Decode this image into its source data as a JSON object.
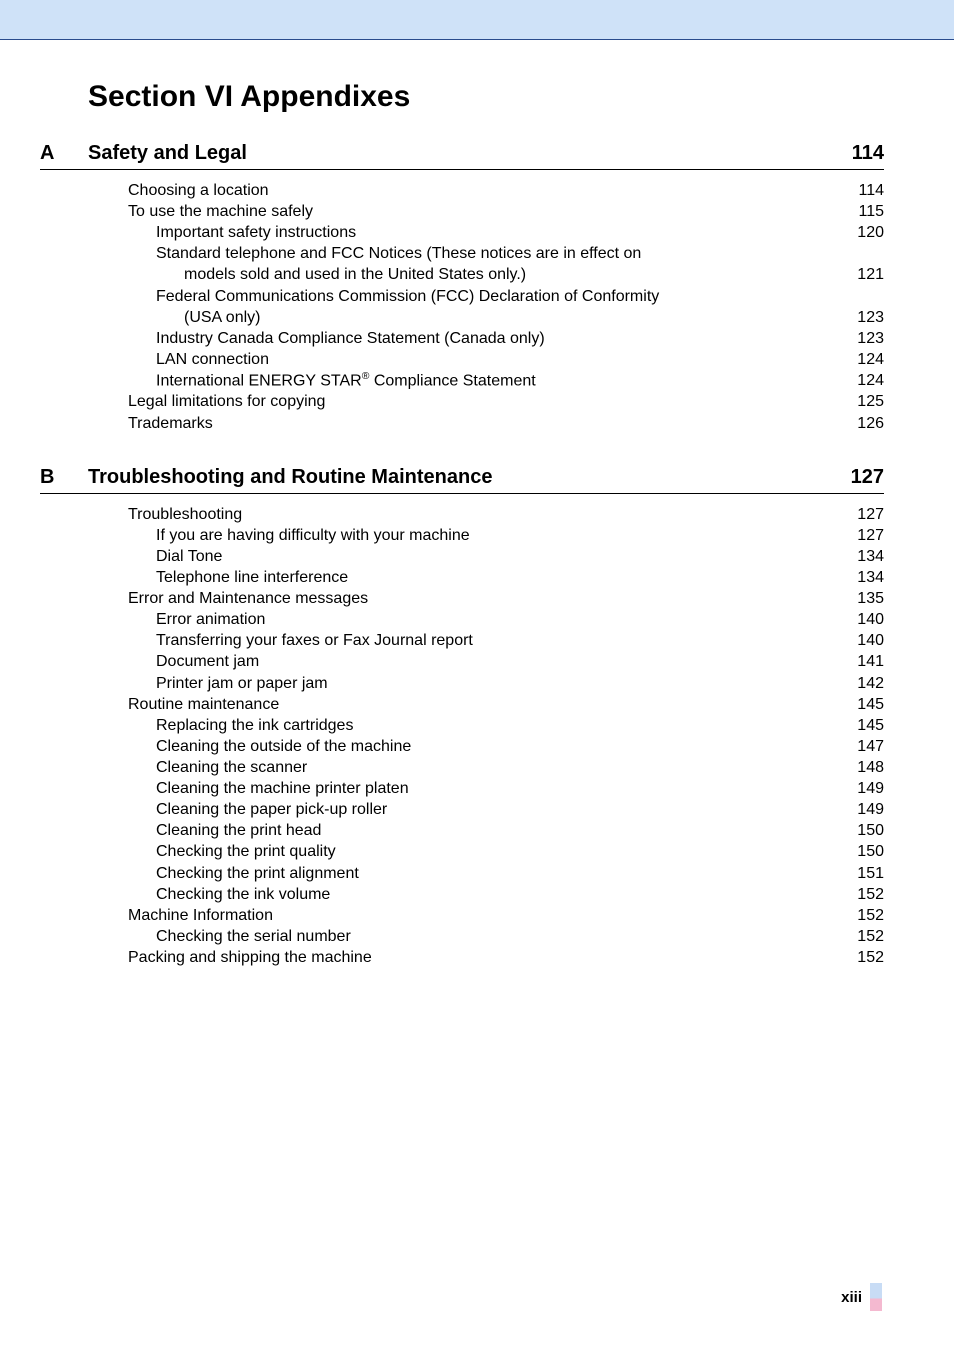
{
  "colors": {
    "header_background": "#cfe2f8",
    "header_border": "#2a4b8d",
    "text": "#000000",
    "page_background": "#ffffff",
    "footer_mark_top": "#c8dcf5",
    "footer_mark_bottom": "#f4b9d0"
  },
  "typography": {
    "section_title_size_pt": 22,
    "chapter_title_size_pt": 15,
    "toc_entry_size_pt": 12,
    "footer_size_pt": 11,
    "font_family": "Arial"
  },
  "section_title": "Section VI Appendixes",
  "chapters": [
    {
      "letter": "A",
      "title": "Safety and Legal",
      "page": "114",
      "entries": [
        {
          "indent": 0,
          "label": "Choosing a location",
          "page": "114"
        },
        {
          "indent": 0,
          "label": "To use the machine safely",
          "page": "115"
        },
        {
          "indent": 1,
          "label": "Important safety instructions",
          "page": "120"
        },
        {
          "indent": 1,
          "wrap": true,
          "line1": "Standard telephone and FCC Notices (These notices are in effect on",
          "line2": "models sold and used in the United States only.)",
          "page": "121"
        },
        {
          "indent": 1,
          "wrap": true,
          "line1": "Federal Communications Commission (FCC) Declaration of Conformity",
          "line2": "(USA only)",
          "page": "123"
        },
        {
          "indent": 1,
          "label": "Industry Canada Compliance Statement (Canada only)",
          "page": "123"
        },
        {
          "indent": 1,
          "label": "LAN connection",
          "page": "124"
        },
        {
          "indent": 1,
          "label_html": "International ENERGY STAR<sup>®</sup> Compliance Statement",
          "page": "124"
        },
        {
          "indent": 0,
          "label": "Legal limitations for copying",
          "page": "125"
        },
        {
          "indent": 0,
          "label": "Trademarks",
          "page": "126"
        }
      ]
    },
    {
      "letter": "B",
      "title": "Troubleshooting and Routine Maintenance",
      "page": "127",
      "entries": [
        {
          "indent": 0,
          "label": "Troubleshooting",
          "page": "127"
        },
        {
          "indent": 1,
          "label": "If you are having difficulty with your machine",
          "page": "127"
        },
        {
          "indent": 1,
          "label": "Dial Tone",
          "page": "134"
        },
        {
          "indent": 1,
          "label": "Telephone line interference",
          "page": "134"
        },
        {
          "indent": 0,
          "label": "Error and Maintenance messages",
          "page": "135"
        },
        {
          "indent": 1,
          "label": "Error animation",
          "page": "140"
        },
        {
          "indent": 1,
          "label": "Transferring your faxes or Fax Journal report",
          "page": "140"
        },
        {
          "indent": 1,
          "label": "Document jam",
          "page": "141"
        },
        {
          "indent": 1,
          "label": "Printer jam or paper jam",
          "page": "142"
        },
        {
          "indent": 0,
          "label": "Routine maintenance",
          "page": "145"
        },
        {
          "indent": 1,
          "label": "Replacing the ink cartridges",
          "page": "145"
        },
        {
          "indent": 1,
          "label": "Cleaning the outside of the machine",
          "page": "147"
        },
        {
          "indent": 1,
          "label": "Cleaning the scanner",
          "page": "148"
        },
        {
          "indent": 1,
          "label": "Cleaning the machine printer platen",
          "page": "149"
        },
        {
          "indent": 1,
          "label": "Cleaning the paper pick-up roller",
          "page": "149"
        },
        {
          "indent": 1,
          "label": "Cleaning the print head",
          "page": "150"
        },
        {
          "indent": 1,
          "label": "Checking the print quality",
          "page": "150"
        },
        {
          "indent": 1,
          "label": "Checking the print alignment",
          "page": "151"
        },
        {
          "indent": 1,
          "label": "Checking the ink volume",
          "page": "152"
        },
        {
          "indent": 0,
          "label": "Machine Information",
          "page": "152"
        },
        {
          "indent": 1,
          "label": "Checking the serial number",
          "page": "152"
        },
        {
          "indent": 0,
          "label": "Packing and shipping the machine",
          "page": "152"
        }
      ]
    }
  ],
  "footer": {
    "page_number": "xiii"
  }
}
